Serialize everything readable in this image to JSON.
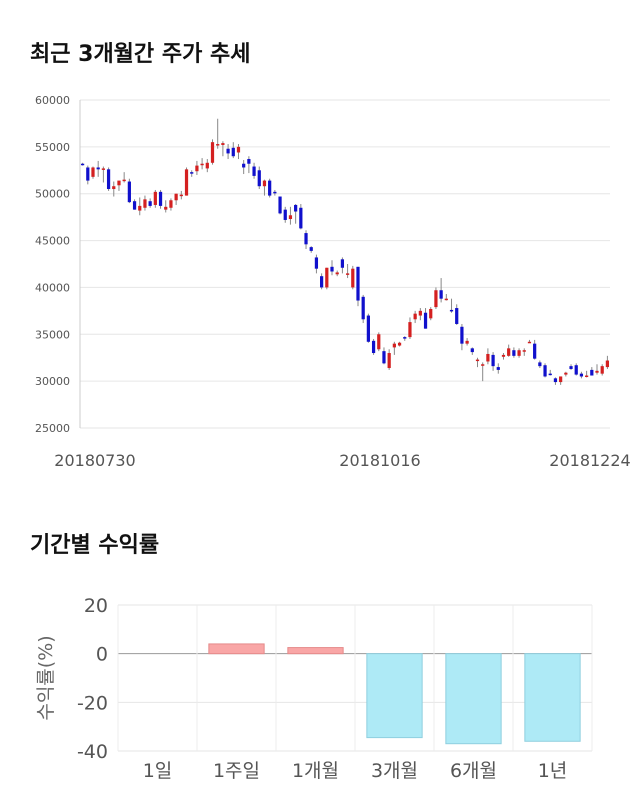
{
  "candle_section": {
    "title": "최근 3개월간 주가 추세"
  },
  "returns_section": {
    "title": "기간별 수익률"
  },
  "chart_data": [
    {
      "type": "candlestick",
      "title": "최근 3개월간 주가 추세",
      "ylim": [
        25000,
        60000
      ],
      "y_ticks": [
        25000,
        30000,
        35000,
        40000,
        45000,
        50000,
        55000,
        60000
      ],
      "x_tick_labels": [
        "20180730",
        "20181016",
        "20181224"
      ],
      "grid": true,
      "up_color": "#d42020",
      "down_color": "#1010cc",
      "candles": [
        [
          53200,
          53300,
          53000,
          53100
        ],
        [
          52800,
          53000,
          51000,
          51400
        ],
        [
          51800,
          52900,
          51600,
          52800
        ],
        [
          52800,
          53500,
          51800,
          52600
        ],
        [
          52700,
          52900,
          51200,
          52700
        ],
        [
          52600,
          52800,
          50300,
          50500
        ],
        [
          50500,
          51300,
          49700,
          50800
        ],
        [
          50900,
          51300,
          50300,
          51400
        ],
        [
          51500,
          52300,
          51200,
          51500
        ],
        [
          51300,
          51600,
          49000,
          49100
        ],
        [
          49200,
          49400,
          48300,
          48300
        ],
        [
          48200,
          49600,
          47700,
          48700
        ],
        [
          48500,
          49800,
          48200,
          49400
        ],
        [
          49200,
          49500,
          48500,
          48700
        ],
        [
          48800,
          50400,
          48500,
          50200
        ],
        [
          50200,
          50400,
          48400,
          48700
        ],
        [
          48300,
          49300,
          48000,
          48600
        ],
        [
          48500,
          49500,
          48200,
          49300
        ],
        [
          49300,
          50000,
          48800,
          50000
        ],
        [
          49900,
          50300,
          49400,
          49900
        ],
        [
          49800,
          52800,
          49800,
          52600
        ],
        [
          52300,
          52500,
          51800,
          52200
        ],
        [
          52400,
          53500,
          52000,
          53000
        ],
        [
          53100,
          53800,
          52600,
          53200
        ],
        [
          52700,
          53700,
          52300,
          53300
        ],
        [
          53300,
          55800,
          53100,
          55500
        ],
        [
          55300,
          58000,
          54800,
          55300
        ],
        [
          55200,
          55600,
          54000,
          55400
        ],
        [
          54800,
          55300,
          53700,
          54300
        ],
        [
          54900,
          55500,
          53800,
          54000
        ],
        [
          54400,
          55300,
          53700,
          55000
        ],
        [
          53200,
          53600,
          52100,
          52800
        ],
        [
          53700,
          54000,
          52200,
          53200
        ],
        [
          52900,
          53300,
          51600,
          51900
        ],
        [
          52500,
          52900,
          50500,
          50800
        ],
        [
          50800,
          51500,
          49800,
          51400
        ],
        [
          51400,
          51600,
          49600,
          49800
        ],
        [
          50200,
          50400,
          49800,
          50100
        ],
        [
          49700,
          49700,
          47800,
          47900
        ],
        [
          48300,
          48600,
          46900,
          47200
        ],
        [
          47300,
          48600,
          46700,
          47700
        ],
        [
          48800,
          48900,
          46800,
          48100
        ],
        [
          48500,
          48900,
          46200,
          46300
        ],
        [
          45800,
          46100,
          44100,
          44600
        ],
        [
          44300,
          44400,
          43700,
          43900
        ],
        [
          43200,
          43500,
          41500,
          42000
        ],
        [
          41200,
          41500,
          39800,
          40000
        ],
        [
          40000,
          42100,
          39800,
          42100
        ],
        [
          42200,
          42900,
          41300,
          41700
        ],
        [
          41400,
          41800,
          41200,
          41600
        ],
        [
          43000,
          43200,
          41500,
          42100
        ],
        [
          41400,
          42500,
          41000,
          41500
        ],
        [
          40000,
          42300,
          39800,
          42000
        ],
        [
          42200,
          42200,
          38000,
          38600
        ],
        [
          39000,
          39200,
          36200,
          36600
        ],
        [
          37000,
          37200,
          34100,
          34200
        ],
        [
          34300,
          34500,
          32800,
          33000
        ],
        [
          33400,
          35200,
          33200,
          35000
        ],
        [
          33200,
          33600,
          31800,
          31900
        ],
        [
          31400,
          33400,
          31200,
          33000
        ],
        [
          33600,
          34200,
          32800,
          34000
        ],
        [
          33800,
          34200,
          33700,
          34100
        ],
        [
          34700,
          34800,
          34300,
          34600
        ],
        [
          34700,
          36800,
          34500,
          36300
        ],
        [
          36600,
          37500,
          36200,
          37200
        ],
        [
          37000,
          37800,
          36500,
          37500
        ],
        [
          37300,
          37800,
          35600,
          35600
        ],
        [
          36700,
          37900,
          36500,
          37700
        ],
        [
          37900,
          40000,
          37700,
          39700
        ],
        [
          39700,
          41000,
          38400,
          38800
        ],
        [
          38800,
          39300,
          38600,
          38800
        ],
        [
          37600,
          38800,
          37300,
          37500
        ],
        [
          37800,
          38200,
          36000,
          36100
        ],
        [
          35800,
          36100,
          33300,
          34000
        ],
        [
          34000,
          34600,
          33800,
          34300
        ],
        [
          33500,
          33600,
          32800,
          33100
        ],
        [
          32200,
          32500,
          31500,
          32300
        ],
        [
          31800,
          32000,
          30000,
          31800
        ],
        [
          32100,
          33500,
          31800,
          32900
        ],
        [
          32800,
          33100,
          31100,
          31600
        ],
        [
          31500,
          31900,
          30800,
          31200
        ],
        [
          32600,
          33000,
          32300,
          32800
        ],
        [
          32700,
          33900,
          32600,
          33500
        ],
        [
          33300,
          33600,
          32500,
          32700
        ],
        [
          32700,
          33500,
          32500,
          33300
        ],
        [
          33200,
          33500,
          32700,
          33300
        ],
        [
          34200,
          34400,
          34100,
          34200
        ],
        [
          34000,
          34400,
          32300,
          32400
        ],
        [
          32000,
          32200,
          31400,
          31600
        ],
        [
          31700,
          31900,
          30400,
          30500
        ],
        [
          30800,
          31200,
          30600,
          30700
        ],
        [
          30300,
          30400,
          29600,
          29900
        ],
        [
          29900,
          30500,
          29600,
          30500
        ],
        [
          30700,
          31000,
          30500,
          30900
        ],
        [
          31600,
          31800,
          31200,
          31300
        ],
        [
          31700,
          31900,
          30600,
          30700
        ],
        [
          30800,
          31000,
          30300,
          30500
        ],
        [
          30500,
          31100,
          30400,
          30600
        ],
        [
          31200,
          31500,
          30600,
          30600
        ],
        [
          30900,
          31800,
          30700,
          31100
        ],
        [
          30800,
          31800,
          30600,
          31600
        ],
        [
          31500,
          32700,
          31300,
          32200
        ]
      ]
    },
    {
      "type": "bar",
      "title": "기간별 수익률",
      "categories": [
        "1일",
        "1주일",
        "1개월",
        "3개월",
        "6개월",
        "1년"
      ],
      "values": [
        0,
        4.0,
        2.5,
        -34.5,
        -37,
        -36
      ],
      "ylabel": "수익률(%)",
      "ylim": [
        -40,
        20
      ],
      "y_ticks": [
        20,
        0,
        -20,
        -40
      ],
      "grid": true,
      "positive_color": "#f9a6a6",
      "negative_color": "#aeeaf6"
    }
  ]
}
